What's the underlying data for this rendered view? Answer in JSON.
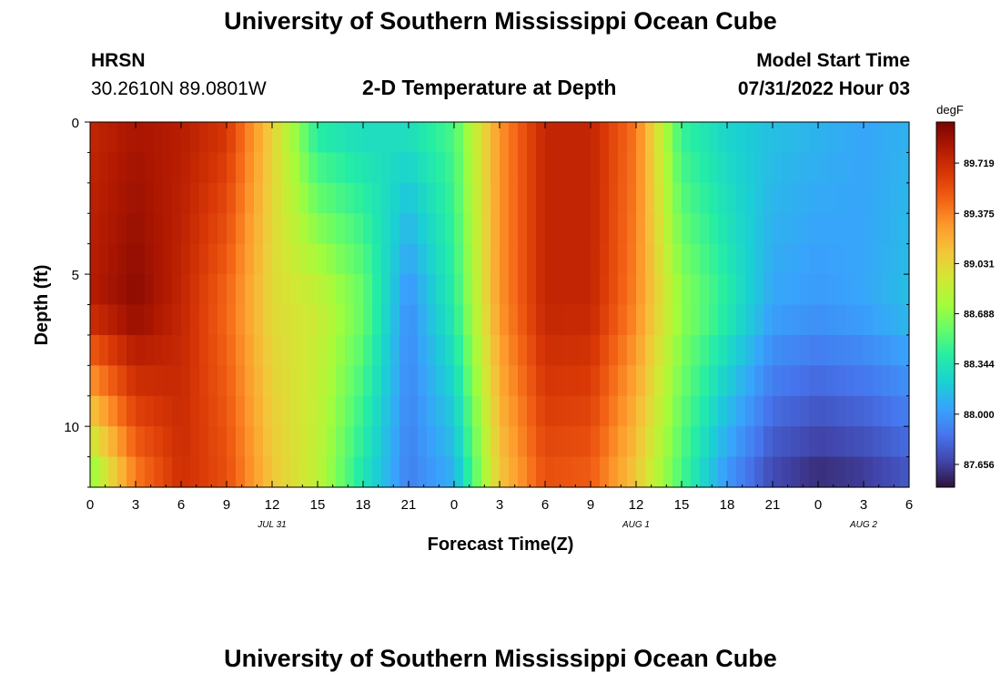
{
  "header": {
    "title": "University of Southern Mississippi Ocean Cube",
    "station": "HRSN",
    "coords": "30.2610N  89.0801W",
    "subtitle": "2-D Temperature at Depth",
    "model_label": "Model Start Time",
    "model_time": "07/31/2022 Hour 03",
    "footer_title": "University of Southern Mississippi Ocean Cube"
  },
  "chart_data": {
    "type": "heatmap",
    "xlabel": "Forecast Time(Z)",
    "ylabel": "Depth (ft)",
    "x_ticks": [
      "0",
      "3",
      "6",
      "9",
      "12",
      "15",
      "18",
      "21",
      "0",
      "3",
      "6",
      "9",
      "12",
      "15",
      "18",
      "21",
      "0",
      "3",
      "6"
    ],
    "x_range_hours": [
      0,
      54
    ],
    "date_labels": [
      {
        "label": "JUL 31",
        "hour": 12
      },
      {
        "label": "AUG 1",
        "hour": 36
      },
      {
        "label": "AUG 2",
        "hour": 51
      }
    ],
    "y_ticks": [
      "0",
      "5",
      "10"
    ],
    "y_range_ft": [
      0,
      12
    ],
    "y_inverted": true,
    "colorbar": {
      "unit": "degF",
      "min": 87.5,
      "max": 90.0,
      "ticks": [
        "89.719",
        "89.375",
        "89.031",
        "88.688",
        "88.344",
        "88.000",
        "87.656"
      ],
      "colormap": [
        "#30123b",
        "#4145ab",
        "#4675ed",
        "#39a2fc",
        "#1bcfd4",
        "#24eca6",
        "#61fc6c",
        "#a4fc3b",
        "#d1e834",
        "#f3c63a",
        "#fe9b2d",
        "#f36315",
        "#d93806",
        "#b11901",
        "#7a0403"
      ]
    },
    "grid": false,
    "depth_profiles_degF": [
      {
        "depth_ft": 0.5,
        "hours": [
          0,
          3,
          6,
          9,
          12,
          15,
          18,
          21,
          24,
          27,
          30,
          33,
          36,
          39,
          42,
          45,
          48,
          51,
          54
        ],
        "values": [
          89.75,
          89.85,
          89.8,
          89.65,
          89.05,
          88.4,
          88.3,
          88.3,
          88.5,
          89.3,
          89.75,
          89.75,
          89.4,
          88.45,
          88.25,
          88.15,
          88.1,
          88.05,
          88.1
        ]
      },
      {
        "depth_ft": 6.0,
        "hours": [
          0,
          3,
          6,
          9,
          12,
          15,
          18,
          21,
          24,
          27,
          30,
          33,
          36,
          39,
          42,
          45,
          48,
          51,
          54
        ],
        "values": [
          89.8,
          89.95,
          89.75,
          89.45,
          89.0,
          88.9,
          88.6,
          87.95,
          88.4,
          89.3,
          89.75,
          89.75,
          89.35,
          88.7,
          88.4,
          88.05,
          88.0,
          88.05,
          88.15
        ]
      },
      {
        "depth_ft": 11.5,
        "hours": [
          0,
          3,
          6,
          9,
          12,
          15,
          18,
          21,
          24,
          27,
          30,
          33,
          36,
          39,
          42,
          45,
          48,
          51,
          54
        ],
        "values": [
          88.7,
          89.4,
          89.7,
          89.55,
          89.1,
          88.85,
          88.35,
          87.9,
          88.1,
          89.1,
          89.55,
          89.5,
          89.1,
          88.5,
          88.0,
          87.7,
          87.6,
          87.65,
          87.75
        ]
      }
    ]
  }
}
